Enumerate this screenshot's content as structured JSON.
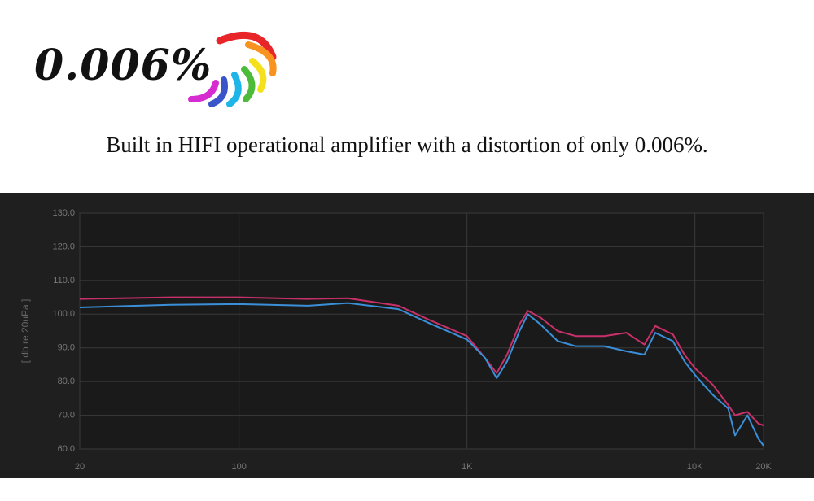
{
  "headline": "0.006%",
  "caption": "Built in HIFI operational amplifier with a distortion of only 0.006%.",
  "chart_data": {
    "type": "line",
    "y_label": "[ db re 20uPa ]",
    "xscale": "log",
    "grid": true,
    "x": [
      20,
      50,
      100,
      200,
      300,
      500,
      700,
      1000,
      1200,
      1350,
      1500,
      1700,
      1850,
      2100,
      2500,
      3000,
      4000,
      5000,
      6000,
      6700,
      8000,
      9000,
      10000,
      12000,
      14000,
      15000,
      17000,
      19000,
      20000
    ],
    "series": [
      {
        "color": "#c8306a",
        "values": [
          104.5,
          105,
          105,
          104.5,
          104.7,
          102.5,
          98,
          93.5,
          87,
          82.5,
          88,
          97,
          101,
          99,
          95,
          93.5,
          93.5,
          94.5,
          91,
          96.5,
          94,
          88,
          84,
          79,
          73,
          70,
          71,
          67.5,
          67
        ]
      },
      {
        "color": "#3a8fd8",
        "values": [
          102,
          102.8,
          103,
          102.5,
          103.3,
          101.5,
          97,
          92.5,
          87,
          81,
          86,
          95,
          100,
          97,
          92,
          90.5,
          90.5,
          89,
          88,
          94.5,
          92,
          86,
          82,
          76,
          72,
          64,
          70,
          63,
          61
        ]
      }
    ],
    "xlim": [
      20,
      20000
    ],
    "xticks": [
      20,
      100,
      {
        "value": 1000,
        "label": "1K"
      },
      {
        "value": 10000,
        "label": "10K"
      },
      {
        "value": 20000,
        "label": "20K"
      }
    ],
    "ylim": [
      60,
      130
    ],
    "yticks": [
      {
        "value": 60,
        "label": "60.0"
      },
      {
        "value": 70,
        "label": "70.0"
      },
      {
        "value": 80,
        "label": "80.0"
      },
      {
        "value": 90,
        "label": "90.0"
      },
      {
        "value": 100,
        "label": "100.0"
      },
      {
        "value": 110,
        "label": "110.0"
      },
      {
        "value": 120,
        "label": "120.0"
      },
      {
        "value": 130,
        "label": "130.0"
      }
    ]
  }
}
